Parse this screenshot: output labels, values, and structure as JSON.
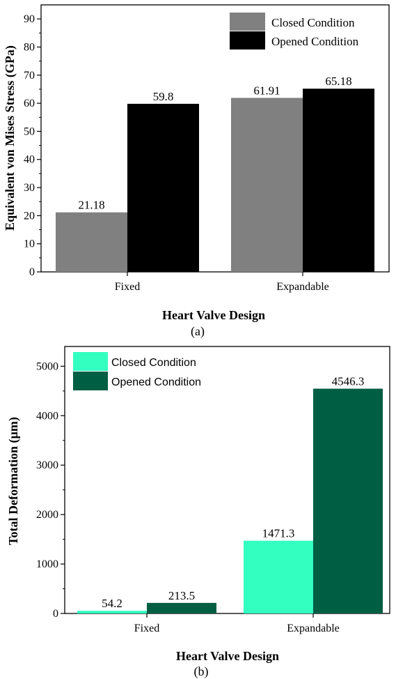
{
  "chart_data": [
    {
      "type": "bar",
      "caption": "(a)",
      "categories": [
        "Fixed",
        "Expandable"
      ],
      "series": [
        {
          "name": "Closed Condition",
          "values": [
            21.18,
            61.91
          ],
          "labels": [
            "21.18",
            "61.91"
          ],
          "color": "#808080"
        },
        {
          "name": "Opened Condition",
          "values": [
            59.8,
            65.18
          ],
          "labels": [
            "59.8",
            "65.18"
          ],
          "color": "#000000"
        }
      ],
      "xlabel": "Heart Valve Design",
      "ylabel": "Equivalent von Mises Stress (GPa)",
      "ylim": [
        0,
        95
      ],
      "yticks": [
        0,
        10,
        20,
        30,
        40,
        50,
        60,
        70,
        80,
        90
      ],
      "legend": "top-right",
      "grid": false
    },
    {
      "type": "bar",
      "caption": "(b)",
      "categories": [
        "Fixed",
        "Expandable"
      ],
      "series": [
        {
          "name": "Closed Condition",
          "values": [
            54.2,
            1471.3
          ],
          "labels": [
            "54.2",
            "1471.3"
          ],
          "color": "#33ffc0"
        },
        {
          "name": "Opened Condition",
          "values": [
            213.5,
            4546.3
          ],
          "labels": [
            "213.5",
            "4546.3"
          ],
          "color": "#005e43"
        }
      ],
      "xlabel": "Heart Valve Design",
      "ylabel": "Total Deformation (µm)",
      "ylim": [
        0,
        5400
      ],
      "yticks": [
        0,
        1000,
        2000,
        3000,
        4000,
        5000
      ],
      "legend": "top-left",
      "grid": false
    }
  ]
}
